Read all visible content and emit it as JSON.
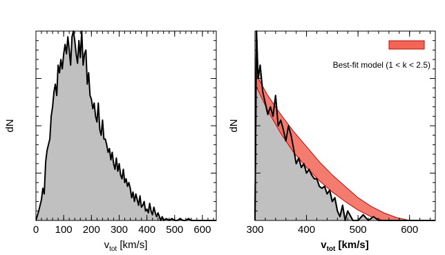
{
  "chart_data": [
    {
      "type": "area",
      "xlabel_main": "v",
      "xlabel_sub": "tot",
      "xlabel_unit": " [km/s]",
      "ylabel": "dN",
      "xlim": [
        0,
        650
      ],
      "ylim": [
        0,
        1.0
      ],
      "x_ticks": [
        0,
        100,
        200,
        300,
        400,
        500,
        600
      ],
      "y_tick_labels_shown": false,
      "fill_color": "#c0c0c0",
      "line_color": "#000000",
      "x": [
        0,
        10,
        20,
        25,
        30,
        35,
        40,
        45,
        50,
        55,
        60,
        65,
        70,
        75,
        80,
        85,
        90,
        95,
        100,
        105,
        110,
        115,
        120,
        125,
        130,
        135,
        140,
        145,
        150,
        155,
        160,
        165,
        170,
        175,
        180,
        185,
        190,
        195,
        200,
        205,
        210,
        215,
        220,
        225,
        230,
        235,
        240,
        245,
        250,
        255,
        260,
        265,
        270,
        275,
        280,
        285,
        290,
        295,
        300,
        305,
        310,
        315,
        320,
        325,
        330,
        335,
        340,
        345,
        350,
        355,
        360,
        365,
        370,
        375,
        380,
        385,
        390,
        395,
        400,
        405,
        410,
        415,
        420,
        425,
        430,
        435,
        440,
        445,
        450,
        455,
        460,
        470,
        480,
        490,
        500,
        510,
        520,
        530,
        540,
        550,
        560,
        580,
        600,
        620,
        650
      ],
      "values": [
        0.0,
        0.05,
        0.11,
        0.17,
        0.14,
        0.31,
        0.37,
        0.4,
        0.43,
        0.55,
        0.6,
        0.68,
        0.72,
        0.66,
        0.82,
        0.78,
        0.85,
        0.8,
        0.88,
        0.93,
        0.88,
        0.97,
        0.9,
        0.82,
        0.97,
        1.0,
        0.95,
        0.88,
        0.83,
        0.95,
        0.86,
        1.0,
        0.82,
        0.88,
        0.9,
        0.72,
        0.78,
        0.66,
        0.64,
        0.59,
        0.62,
        0.55,
        0.52,
        0.62,
        0.48,
        0.45,
        0.53,
        0.43,
        0.43,
        0.4,
        0.36,
        0.38,
        0.32,
        0.36,
        0.3,
        0.27,
        0.33,
        0.26,
        0.3,
        0.24,
        0.22,
        0.27,
        0.2,
        0.22,
        0.18,
        0.2,
        0.17,
        0.12,
        0.15,
        0.1,
        0.14,
        0.11,
        0.08,
        0.13,
        0.07,
        0.08,
        0.1,
        0.05,
        0.06,
        0.04,
        0.09,
        0.05,
        0.03,
        0.07,
        0.04,
        0.02,
        0.04,
        0.02,
        0.0,
        0.02,
        0.0,
        0.01,
        0.0,
        0.01,
        0.0,
        0.0,
        0.01,
        0.0,
        0.0,
        0.01,
        0.0,
        0.0,
        0.0,
        0.0,
        0.0
      ]
    },
    {
      "type": "area",
      "xlabel_main": "v",
      "xlabel_sub": "tot",
      "xlabel_unit": " [km/s]",
      "ylabel": "dN",
      "xlim": [
        300,
        650
      ],
      "ylim": [
        0,
        1.0
      ],
      "x_ticks": [
        300,
        400,
        500,
        600
      ],
      "y_tick_labels_shown": false,
      "fill_color": "#c0c0c0",
      "line_color": "#000000",
      "legend": {
        "label": "Best-fit model (1 < k < 2.5)",
        "position": "top-right",
        "color": "#f26555",
        "edge_color": "#cc0000"
      },
      "x": [
        300,
        303,
        306,
        310,
        315,
        320,
        325,
        330,
        335,
        340,
        345,
        350,
        355,
        360,
        365,
        370,
        375,
        380,
        385,
        390,
        395,
        400,
        405,
        410,
        415,
        420,
        425,
        430,
        435,
        440,
        445,
        450,
        455,
        460,
        465,
        470,
        475,
        480,
        490,
        500,
        510,
        520,
        530,
        540,
        550,
        560,
        580,
        600,
        620,
        650
      ],
      "values": [
        0.0,
        1.0,
        0.75,
        0.82,
        0.68,
        0.62,
        0.56,
        0.6,
        0.55,
        0.66,
        0.5,
        0.53,
        0.48,
        0.42,
        0.5,
        0.45,
        0.38,
        0.3,
        0.33,
        0.28,
        0.3,
        0.25,
        0.27,
        0.24,
        0.22,
        0.22,
        0.18,
        0.17,
        0.18,
        0.14,
        0.16,
        0.1,
        0.12,
        0.05,
        0.02,
        0.08,
        0.0,
        0.05,
        0.0,
        0.0,
        0.03,
        0.0,
        0.02,
        0.0,
        0.0,
        0.0,
        0.0,
        0.0,
        0.0,
        0.0
      ],
      "model_band": {
        "x": [
          300,
          325,
          350,
          375,
          400,
          425,
          450,
          475,
          500,
          525,
          550,
          575,
          600,
          625,
          650
        ],
        "upper": [
          0.78,
          0.66,
          0.56,
          0.47,
          0.39,
          0.31,
          0.24,
          0.18,
          0.12,
          0.075,
          0.04,
          0.015,
          0.0,
          0.0,
          0.0
        ],
        "lower": [
          0.72,
          0.58,
          0.46,
          0.36,
          0.28,
          0.21,
          0.15,
          0.1,
          0.055,
          0.02,
          0.0,
          0.0,
          0.0,
          0.0,
          0.0
        ]
      }
    }
  ]
}
